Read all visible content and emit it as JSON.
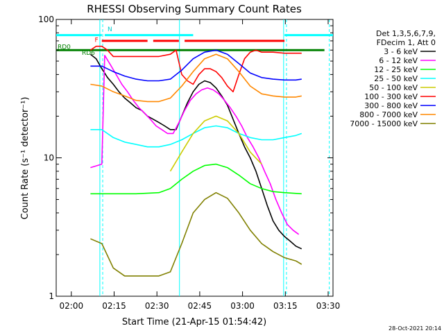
{
  "chart_data": {
    "type": "line",
    "title": "RHESSI Observing Summary Count Rates",
    "xlabel": "Start Time (21-Apr-15 01:54:42)",
    "ylabel": "Count Rate (s⁻¹ detector⁻¹)",
    "yscale": "log",
    "ylim": [
      1,
      100
    ],
    "xlim_minutes": [
      0,
      97
    ],
    "x_ticks": [
      {
        "label": "02:00",
        "min": 5.3
      },
      {
        "label": "02:15",
        "min": 20.3
      },
      {
        "label": "02:30",
        "min": 35.3
      },
      {
        "label": "02:45",
        "min": 50.3
      },
      {
        "label": "03:00",
        "min": 65.3
      },
      {
        "label": "03:15",
        "min": 80.3
      },
      {
        "label": "03:30",
        "min": 95.3
      }
    ],
    "y_ticks": [
      {
        "label": "100",
        "value": 100
      },
      {
        "label": "10",
        "value": 10
      },
      {
        "label": "1",
        "value": 1
      }
    ],
    "legend": {
      "header_lines": [
        "Det 1,3,5,6,7,9,",
        "FDecim 1, Att 0"
      ],
      "position": "right"
    },
    "series": [
      {
        "name": "3 - 6 keV",
        "color": "#000000",
        "points": [
          [
            12,
            56
          ],
          [
            14,
            52
          ],
          [
            16,
            44
          ],
          [
            18,
            38
          ],
          [
            20,
            34
          ],
          [
            22,
            30
          ],
          [
            24,
            27
          ],
          [
            26,
            25
          ],
          [
            28,
            23
          ],
          [
            30,
            22
          ],
          [
            32,
            20
          ],
          [
            34,
            19
          ],
          [
            36,
            18
          ],
          [
            38,
            17
          ],
          [
            40,
            16
          ],
          [
            42,
            16
          ],
          [
            44,
            20
          ],
          [
            46,
            25
          ],
          [
            48,
            30
          ],
          [
            50,
            34
          ],
          [
            52,
            36
          ],
          [
            54,
            35
          ],
          [
            56,
            32
          ],
          [
            58,
            28
          ],
          [
            60,
            24
          ],
          [
            62,
            19
          ],
          [
            64,
            15
          ],
          [
            66,
            12
          ],
          [
            68,
            10
          ],
          [
            70,
            8
          ],
          [
            72,
            6
          ],
          [
            74,
            4.5
          ],
          [
            76,
            3.5
          ],
          [
            78,
            3.0
          ],
          [
            80,
            2.7
          ],
          [
            82,
            2.5
          ],
          [
            84,
            2.3
          ],
          [
            86,
            2.2
          ]
        ]
      },
      {
        "name": "6 - 12 keV",
        "color": "#ff00ff",
        "points": [
          [
            12,
            8.5
          ],
          [
            16,
            9
          ],
          [
            17,
            55
          ],
          [
            19,
            47
          ],
          [
            21,
            40
          ],
          [
            23,
            34
          ],
          [
            25,
            30
          ],
          [
            27,
            26
          ],
          [
            29,
            23
          ],
          [
            31,
            21
          ],
          [
            33,
            19
          ],
          [
            35,
            17
          ],
          [
            37,
            16
          ],
          [
            39,
            15
          ],
          [
            41,
            15
          ],
          [
            43,
            18
          ],
          [
            45,
            22
          ],
          [
            47,
            26
          ],
          [
            49,
            29
          ],
          [
            51,
            31
          ],
          [
            53,
            32
          ],
          [
            55,
            31
          ],
          [
            57,
            29
          ],
          [
            59,
            26
          ],
          [
            61,
            23
          ],
          [
            63,
            20
          ],
          [
            65,
            17
          ],
          [
            67,
            14
          ],
          [
            69,
            12
          ],
          [
            71,
            10
          ],
          [
            73,
            8
          ],
          [
            75,
            6.5
          ],
          [
            77,
            5
          ],
          [
            79,
            4
          ],
          [
            81,
            3.3
          ],
          [
            83,
            3.0
          ],
          [
            85,
            2.8
          ]
        ]
      },
      {
        "name": "12 - 25 keV",
        "color": "#00ff00",
        "points": [
          [
            12,
            5.5
          ],
          [
            20,
            5.5
          ],
          [
            28,
            5.5
          ],
          [
            36,
            5.6
          ],
          [
            40,
            6
          ],
          [
            44,
            7
          ],
          [
            48,
            8
          ],
          [
            52,
            8.8
          ],
          [
            56,
            9
          ],
          [
            60,
            8.5
          ],
          [
            64,
            7.5
          ],
          [
            68,
            6.5
          ],
          [
            72,
            6
          ],
          [
            76,
            5.7
          ],
          [
            80,
            5.6
          ],
          [
            86,
            5.5
          ]
        ]
      },
      {
        "name": "25 - 50 keV",
        "color": "#00ffff",
        "points": [
          [
            12,
            16
          ],
          [
            16,
            16
          ],
          [
            20,
            14
          ],
          [
            24,
            13
          ],
          [
            28,
            12.5
          ],
          [
            32,
            12
          ],
          [
            36,
            12
          ],
          [
            40,
            12.5
          ],
          [
            44,
            13.5
          ],
          [
            48,
            15
          ],
          [
            52,
            16.5
          ],
          [
            56,
            17
          ],
          [
            60,
            16.5
          ],
          [
            64,
            15
          ],
          [
            68,
            14
          ],
          [
            72,
            13.5
          ],
          [
            76,
            13.5
          ],
          [
            80,
            14
          ],
          [
            84,
            14.5
          ],
          [
            86,
            15
          ]
        ]
      },
      {
        "name": "50 - 100 keV",
        "color": "#cccc00",
        "points": [
          [
            40,
            8
          ],
          [
            44,
            11
          ],
          [
            48,
            15
          ],
          [
            52,
            18.5
          ],
          [
            56,
            20
          ],
          [
            60,
            18.5
          ],
          [
            64,
            15
          ],
          [
            68,
            11
          ],
          [
            72,
            9
          ]
        ]
      },
      {
        "name": "100 - 300 keV",
        "color": "#ff0000",
        "points": [
          [
            12,
            60
          ],
          [
            14,
            64
          ],
          [
            16,
            64
          ],
          [
            18,
            60
          ],
          [
            20,
            54
          ],
          [
            24,
            54
          ],
          [
            28,
            54
          ],
          [
            32,
            54
          ],
          [
            36,
            54
          ],
          [
            40,
            56
          ],
          [
            42,
            60
          ],
          [
            44,
            40
          ],
          [
            46,
            36
          ],
          [
            48,
            34
          ],
          [
            50,
            40
          ],
          [
            52,
            44
          ],
          [
            54,
            44
          ],
          [
            56,
            42
          ],
          [
            58,
            38
          ],
          [
            60,
            33
          ],
          [
            62,
            30
          ],
          [
            64,
            40
          ],
          [
            66,
            52
          ],
          [
            68,
            58
          ],
          [
            70,
            60
          ],
          [
            72,
            58
          ],
          [
            76,
            58
          ],
          [
            80,
            57
          ],
          [
            84,
            57
          ],
          [
            86,
            57
          ]
        ]
      },
      {
        "name": "300 - 800 keV",
        "color": "#0000ff",
        "points": [
          [
            12,
            46
          ],
          [
            16,
            46
          ],
          [
            20,
            42
          ],
          [
            24,
            39
          ],
          [
            28,
            37
          ],
          [
            32,
            36
          ],
          [
            36,
            36
          ],
          [
            40,
            37
          ],
          [
            44,
            43
          ],
          [
            48,
            52
          ],
          [
            52,
            58
          ],
          [
            56,
            60
          ],
          [
            60,
            56
          ],
          [
            64,
            48
          ],
          [
            68,
            41
          ],
          [
            72,
            38
          ],
          [
            76,
            37
          ],
          [
            80,
            36.5
          ],
          [
            84,
            36.5
          ],
          [
            86,
            37
          ]
        ]
      },
      {
        "name": "800 - 7000 keV",
        "color": "#ff8800",
        "points": [
          [
            12,
            34
          ],
          [
            16,
            33
          ],
          [
            20,
            30
          ],
          [
            24,
            28
          ],
          [
            28,
            26
          ],
          [
            32,
            25.5
          ],
          [
            36,
            25.5
          ],
          [
            40,
            27
          ],
          [
            44,
            33
          ],
          [
            48,
            42
          ],
          [
            52,
            52
          ],
          [
            56,
            56
          ],
          [
            60,
            52
          ],
          [
            64,
            42
          ],
          [
            68,
            33
          ],
          [
            72,
            29
          ],
          [
            76,
            28
          ],
          [
            80,
            27.5
          ],
          [
            84,
            27.5
          ],
          [
            86,
            28
          ]
        ]
      },
      {
        "name": "7000 - 15000 keV",
        "color": "#808000",
        "points": [
          [
            12,
            2.6
          ],
          [
            16,
            2.4
          ],
          [
            20,
            1.6
          ],
          [
            24,
            1.4
          ],
          [
            28,
            1.4
          ],
          [
            32,
            1.4
          ],
          [
            36,
            1.4
          ],
          [
            40,
            1.5
          ],
          [
            44,
            2.4
          ],
          [
            48,
            4
          ],
          [
            52,
            5
          ],
          [
            56,
            5.6
          ],
          [
            60,
            5.1
          ],
          [
            64,
            4
          ],
          [
            68,
            3
          ],
          [
            72,
            2.4
          ],
          [
            76,
            2.1
          ],
          [
            80,
            1.9
          ],
          [
            84,
            1.8
          ],
          [
            86,
            1.7
          ]
        ]
      }
    ],
    "annotations": [
      {
        "text": "RD0",
        "color": "#008000",
        "x_min": 0,
        "y_value": 64
      },
      {
        "text": "RD6",
        "color": "#008000",
        "x_min": 8.5,
        "y_value": 58
      },
      {
        "text": "N",
        "color": "#00cccc",
        "x_min": 17.5,
        "y_value": 86
      },
      {
        "text": "F",
        "color": "#ff0000",
        "x_min": 13,
        "y_value": 72
      }
    ],
    "flag_bars": [
      {
        "color": "#00ffff",
        "segments": [
          [
            0,
            16
          ],
          [
            17,
            48
          ],
          [
            80,
            97
          ]
        ],
        "y_value": 77
      },
      {
        "color": "#ff0000",
        "segments": [
          [
            16,
            32
          ],
          [
            34,
            43
          ],
          [
            45,
            80
          ]
        ],
        "y_value": 70
      },
      {
        "color": "#008000",
        "segments": [
          [
            0,
            94
          ]
        ],
        "y_value": 60
      }
    ],
    "vlines": [
      {
        "color": "#00ffff",
        "x_min": 15.3,
        "dashed": false
      },
      {
        "color": "#00ffff",
        "x_min": 16.3,
        "dashed": true
      },
      {
        "color": "#00ffff",
        "x_min": 43.2,
        "dashed": false
      },
      {
        "color": "#00ffff",
        "x_min": 79.7,
        "dashed": false
      },
      {
        "color": "#00ffff",
        "x_min": 80.7,
        "dashed": true
      },
      {
        "color": "#00ffff",
        "x_min": 95.7,
        "dashed": true
      }
    ]
  },
  "footer": {
    "timestamp": "28-Oct-2021 20:14"
  }
}
